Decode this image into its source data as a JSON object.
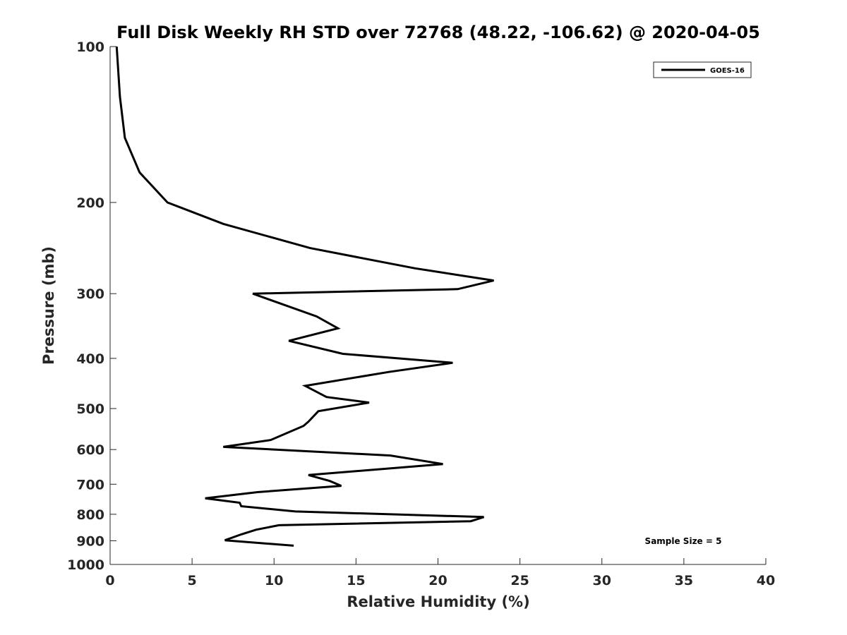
{
  "chart_data": {
    "type": "line",
    "title": "Full Disk Weekly RH STD over 72768 (48.22, -106.62) @ 2020-04-05",
    "xlabel": "Relative Humidity (%)",
    "ylabel": "Pressure (mb)",
    "xlim": [
      0,
      40
    ],
    "ylim": [
      100,
      1000
    ],
    "y_scale": "log",
    "y_reversed": true,
    "grid": false,
    "legend_position": "top-right",
    "x_ticks": [
      "0",
      "5",
      "10",
      "15",
      "20",
      "25",
      "30",
      "35",
      "40"
    ],
    "y_ticks": [
      "100",
      "200",
      "300",
      "400",
      "500",
      "600",
      "700",
      "800",
      "900",
      "1000"
    ],
    "annotation": "Sample Size = 5",
    "series": [
      {
        "name": "GOES-16",
        "color": "#000000",
        "points": [
          [
            0.4,
            100
          ],
          [
            0.6,
            125
          ],
          [
            0.9,
            150
          ],
          [
            1.8,
            175
          ],
          [
            3.5,
            200
          ],
          [
            6.9,
            220
          ],
          [
            12.2,
            245
          ],
          [
            18.6,
            268
          ],
          [
            23.4,
            283
          ],
          [
            21.2,
            294
          ],
          [
            8.7,
            300
          ],
          [
            12.6,
            332
          ],
          [
            13.9,
            350
          ],
          [
            10.9,
            370
          ],
          [
            14.2,
            392
          ],
          [
            20.9,
            408
          ],
          [
            17.0,
            425
          ],
          [
            11.9,
            452
          ],
          [
            13.2,
            475
          ],
          [
            15.8,
            487
          ],
          [
            12.7,
            506
          ],
          [
            12.1,
            530
          ],
          [
            11.8,
            540
          ],
          [
            9.8,
            575
          ],
          [
            6.9,
            593
          ],
          [
            17.1,
            616
          ],
          [
            20.3,
            640
          ],
          [
            12.1,
            672
          ],
          [
            13.4,
            690
          ],
          [
            14.1,
            705
          ],
          [
            9.0,
            725
          ],
          [
            5.8,
            745
          ],
          [
            7.9,
            760
          ],
          [
            8.0,
            772
          ],
          [
            11.3,
            790
          ],
          [
            22.8,
            810
          ],
          [
            22.0,
            825
          ],
          [
            10.3,
            840
          ],
          [
            8.9,
            857
          ],
          [
            8.0,
            875
          ],
          [
            7.0,
            898
          ],
          [
            11.2,
            920
          ]
        ]
      }
    ]
  }
}
